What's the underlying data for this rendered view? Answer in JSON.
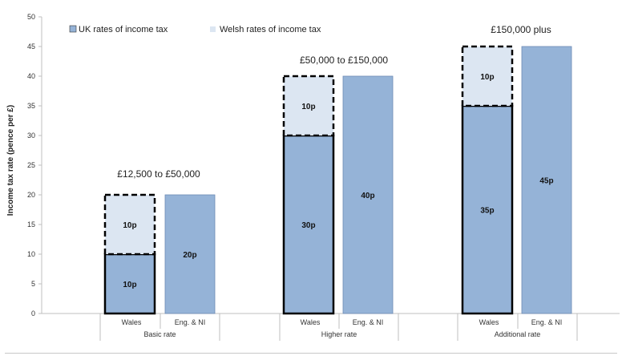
{
  "chart_data": {
    "type": "bar",
    "ylabel": "Income tax rate (pence per £)",
    "ylim": [
      0,
      50
    ],
    "yticks": [
      0,
      5,
      10,
      15,
      20,
      25,
      30,
      35,
      40,
      45,
      50
    ],
    "grid": false,
    "legend_position": "top-left",
    "series": [
      {
        "name": "UK rates of income tax",
        "color": "#95b3d7"
      },
      {
        "name": "Welsh rates of income tax",
        "color": "#dce6f2"
      }
    ],
    "groups": [
      {
        "name": "Basic rate",
        "band": "£12,500 to £50,000",
        "bars": [
          {
            "category": "Wales",
            "uk": 10,
            "uk_label": "10p",
            "welsh": 10,
            "welsh_label": "10p"
          },
          {
            "category": "Eng. & NI",
            "uk": 20,
            "uk_label": "20p",
            "welsh": 0,
            "welsh_label": ""
          }
        ]
      },
      {
        "name": "Higher rate",
        "band": "£50,000 to £150,000",
        "bars": [
          {
            "category": "Wales",
            "uk": 30,
            "uk_label": "30p",
            "welsh": 10,
            "welsh_label": "10p"
          },
          {
            "category": "Eng. & NI",
            "uk": 40,
            "uk_label": "40p",
            "welsh": 0,
            "welsh_label": ""
          }
        ]
      },
      {
        "name": "Additional rate",
        "band": "£150,000 plus",
        "bars": [
          {
            "category": "Wales",
            "uk": 35,
            "uk_label": "35p",
            "welsh": 10,
            "welsh_label": "10p"
          },
          {
            "category": "Eng. & NI",
            "uk": 45,
            "uk_label": "45p",
            "welsh": 0,
            "welsh_label": ""
          }
        ]
      }
    ]
  }
}
